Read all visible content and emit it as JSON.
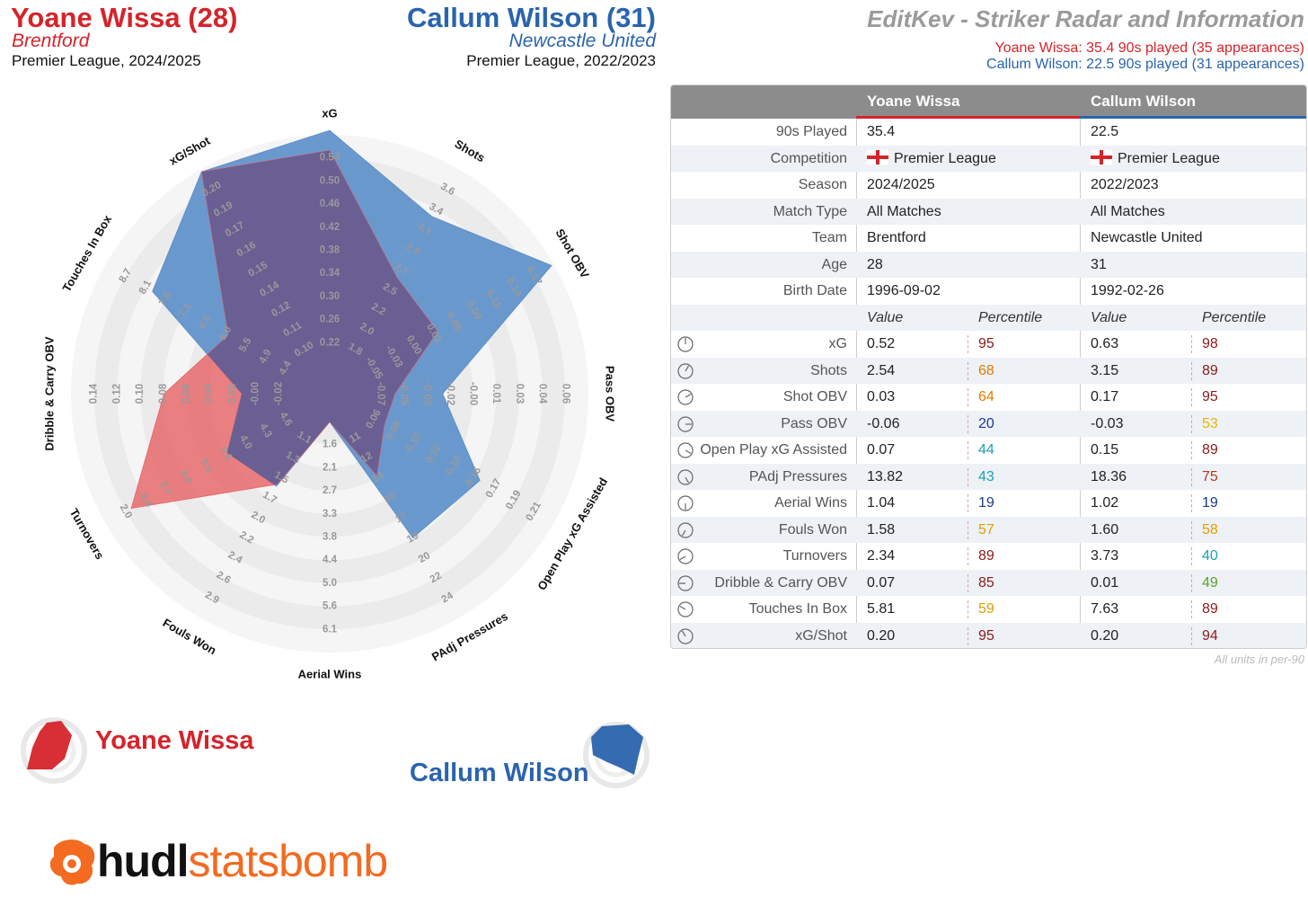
{
  "header": {
    "player1": {
      "name": "Yoane Wissa (28)",
      "team": "Brentford",
      "competition": "Premier League, 2024/2025"
    },
    "player2": {
      "name": "Callum Wilson (31)",
      "team": "Newcastle United",
      "competition": "Premier League, 2022/2023"
    },
    "title": "EditKev - Striker Radar and Information",
    "sub1": "Yoane Wissa: 35.4 90s played (35 appearances)",
    "sub2": "Callum Wilson: 22.5 90s played (31 appearances)"
  },
  "colors": {
    "player1": "#d6232a",
    "player2": "#2a64ad",
    "fill1": "#e86a6c",
    "fill2": "#5b8fca",
    "overlap": "#6a5f93"
  },
  "legend": {
    "player1": "Yoane Wissa",
    "player2": "Callum Wilson"
  },
  "logo": {
    "part1": "hudl",
    "part2": "statsbomb"
  },
  "chart_data": {
    "type": "radar",
    "axes": [
      {
        "name": "xG",
        "ticks": [
          "0.22",
          "0.26",
          "0.30",
          "0.34",
          "0.38",
          "0.42",
          "0.46",
          "0.50",
          "0.54"
        ]
      },
      {
        "name": "Shots",
        "ticks": [
          "1.8",
          "2.0",
          "2.2",
          "2.5",
          "2.7",
          "2.9",
          "3.1",
          "3.4",
          "3.6"
        ]
      },
      {
        "name": "Shot OBV",
        "ticks": [
          "-0.05",
          "-0.03",
          "0.00",
          "0.03",
          "0.06",
          "0.09",
          "0.11",
          "0.14",
          "0.17"
        ]
      },
      {
        "name": "Pass OBV",
        "ticks": [
          "-0.07",
          "-0.05",
          "-0.03",
          "-0.02",
          "-0.00",
          "0.01",
          "0.03",
          "0.04",
          "0.06"
        ]
      },
      {
        "name": "Open Play xG Assisted",
        "ticks": [
          "0.06",
          "0.08",
          "0.10",
          "0.12",
          "0.14",
          "0.16",
          "0.17",
          "0.19",
          "0.21"
        ]
      },
      {
        "name": "PAdj Pressures",
        "ticks": [
          "11",
          "12",
          "14",
          "16",
          "17",
          "19",
          "20",
          "22",
          "24"
        ]
      },
      {
        "name": "Aerial Wins",
        "ticks": [
          "1.6",
          "2.1",
          "2.7",
          "3.3",
          "3.8",
          "4.4",
          "5.0",
          "5.6",
          "6.1"
        ]
      },
      {
        "name": "Fouls Won",
        "ticks": [
          "1.1",
          "1.3",
          "1.5",
          "1.7",
          "2.0",
          "2.2",
          "2.4",
          "2.6",
          "2.9"
        ]
      },
      {
        "name": "Turnovers",
        "ticks": [
          "4.6",
          "4.3",
          "4.0",
          "3.6",
          "3.3",
          "3.0",
          "2.7",
          "2.4",
          "2.0"
        ]
      },
      {
        "name": "Dribble & Carry OBV",
        "ticks": [
          "-0.02",
          "-0.00",
          "0.02",
          "0.04",
          "0.06",
          "0.08",
          "0.10",
          "0.12",
          "0.14"
        ]
      },
      {
        "name": "Touches In Box",
        "ticks": [
          "4.4",
          "4.9",
          "5.5",
          "6.0",
          "6.5",
          "7.1",
          "7.6",
          "8.1",
          "8.7"
        ]
      },
      {
        "name": "xG/Shot",
        "ticks": [
          "0.10",
          "0.11",
          "0.12",
          "0.14",
          "0.15",
          "0.16",
          "0.17",
          "0.19",
          "0.20"
        ]
      }
    ],
    "series": [
      {
        "name": "Yoane Wissa",
        "values": [
          0.52,
          2.54,
          0.03,
          -0.06,
          0.07,
          13.82,
          1.04,
          1.58,
          2.34,
          0.07,
          5.81,
          0.2
        ]
      },
      {
        "name": "Callum Wilson",
        "values": [
          0.63,
          3.15,
          0.17,
          -0.03,
          0.15,
          18.36,
          1.02,
          1.6,
          3.73,
          0.01,
          7.63,
          0.2
        ]
      }
    ]
  },
  "table": {
    "headers": [
      "Yoane Wissa",
      "Callum Wilson"
    ],
    "info": [
      {
        "label": "90s Played",
        "v1": "35.4",
        "v2": "22.5"
      },
      {
        "label": "Competition",
        "v1": "Premier League",
        "v2": "Premier League",
        "flag": true
      },
      {
        "label": "Season",
        "v1": "2024/2025",
        "v2": "2022/2023"
      },
      {
        "label": "Match Type",
        "v1": "All Matches",
        "v2": "All Matches"
      },
      {
        "label": "Team",
        "v1": "Brentford",
        "v2": "Newcastle United"
      },
      {
        "label": "Age",
        "v1": "28",
        "v2": "31"
      },
      {
        "label": "Birth Date",
        "v1": "1996-09-02",
        "v2": "1992-02-26"
      }
    ],
    "value_header": "Value",
    "percentile_header": "Percentile",
    "stats": [
      {
        "label": "xG",
        "v1": "0.52",
        "p1": "95",
        "v2": "0.63",
        "p2": "98",
        "c1": "#8b1a1a",
        "c2": "#8b1a1a"
      },
      {
        "label": "Shots",
        "v1": "2.54",
        "p1": "68",
        "v2": "3.15",
        "p2": "89",
        "c1": "#e07b00",
        "c2": "#8b1a1a"
      },
      {
        "label": "Shot OBV",
        "v1": "0.03",
        "p1": "64",
        "v2": "0.17",
        "p2": "95",
        "c1": "#e07b00",
        "c2": "#8b1a1a"
      },
      {
        "label": "Pass OBV",
        "v1": "-0.06",
        "p1": "20",
        "v2": "-0.03",
        "p2": "53",
        "c1": "#1a3a8b",
        "c2": "#e6b800"
      },
      {
        "label": "Open Play xG Assisted",
        "v1": "0.07",
        "p1": "44",
        "v2": "0.15",
        "p2": "89",
        "c1": "#1aa0b0",
        "c2": "#8b1a1a"
      },
      {
        "label": "PAdj Pressures",
        "v1": "13.82",
        "p1": "43",
        "v2": "18.36",
        "p2": "75",
        "c1": "#1aa0b0",
        "c2": "#b33a1a"
      },
      {
        "label": "Aerial Wins",
        "v1": "1.04",
        "p1": "19",
        "v2": "1.02",
        "p2": "19",
        "c1": "#1a3a8b",
        "c2": "#1a3a8b"
      },
      {
        "label": "Fouls Won",
        "v1": "1.58",
        "p1": "57",
        "v2": "1.60",
        "p2": "58",
        "c1": "#e0a000",
        "c2": "#e0a000"
      },
      {
        "label": "Turnovers",
        "v1": "2.34",
        "p1": "89",
        "v2": "3.73",
        "p2": "40",
        "c1": "#8b1a1a",
        "c2": "#1aa0b0"
      },
      {
        "label": "Dribble & Carry OBV",
        "v1": "0.07",
        "p1": "85",
        "v2": "0.01",
        "p2": "49",
        "c1": "#8b1a1a",
        "c2": "#5aa02a"
      },
      {
        "label": "Touches In Box",
        "v1": "5.81",
        "p1": "59",
        "v2": "7.63",
        "p2": "89",
        "c1": "#e0a000",
        "c2": "#8b1a1a"
      },
      {
        "label": "xG/Shot",
        "v1": "0.20",
        "p1": "95",
        "v2": "0.20",
        "p2": "94",
        "c1": "#8b1a1a",
        "c2": "#8b1a1a"
      }
    ],
    "footnote": "All units in per-90"
  }
}
